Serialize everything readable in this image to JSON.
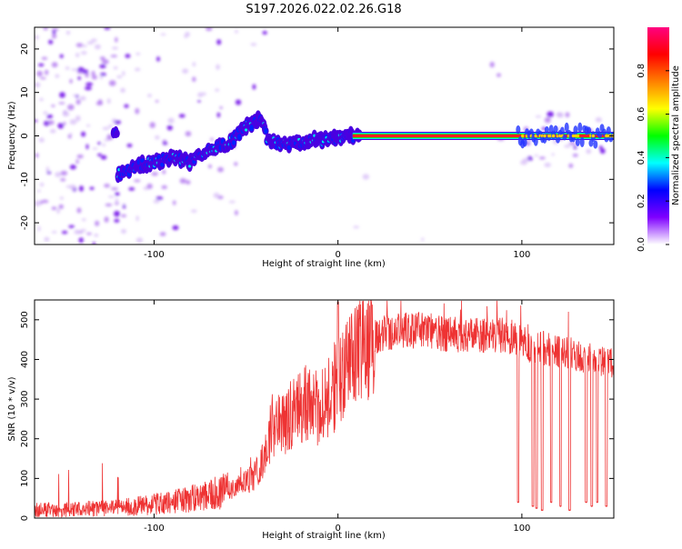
{
  "chart_data": [
    {
      "type": "heatmap",
      "title": "S197.2026.022.02.26.G18",
      "xlabel": "Height of straight line (km)",
      "ylabel": "Frequency (Hz)",
      "xlim": [
        -165,
        150
      ],
      "ylim": [
        -25,
        25
      ],
      "xticks": [
        -100,
        0,
        100
      ],
      "yticks": [
        -20,
        -10,
        0,
        10,
        20
      ],
      "colorbar": {
        "label": "Normalized spectral amplitude",
        "range": [
          0,
          1
        ],
        "ticks": [
          0.0,
          0.2,
          0.4,
          0.6,
          0.8
        ],
        "colors": [
          "#ffffff",
          "#7f00ff",
          "#0000ff",
          "#00ffff",
          "#00ff00",
          "#ffff00",
          "#ff8000",
          "#ff0000",
          "#ff0080"
        ]
      },
      "ridge": {
        "x": [
          -120,
          -110,
          -100,
          -90,
          -80,
          -70,
          -60,
          -50,
          -42,
          -38,
          -32,
          -25,
          -15,
          -5,
          5,
          15,
          150
        ],
        "y": [
          -9,
          -7,
          -6,
          -5,
          -6,
          -3,
          -2,
          2,
          4,
          -1,
          -2,
          -1.5,
          -1,
          -1,
          0,
          0,
          0
        ]
      }
    },
    {
      "type": "line",
      "title": "",
      "xlabel": "Height of straight line (km)",
      "ylabel": "SNR (10 * v/v)",
      "xlim": [
        -165,
        150
      ],
      "ylim": [
        0,
        550
      ],
      "xticks": [
        -100,
        0,
        100
      ],
      "yticks": [
        0,
        100,
        200,
        300,
        400,
        500
      ],
      "color": "#ee3333",
      "series": [
        {
          "name": "SNR",
          "x": [
            -165,
            -150,
            -140,
            -130,
            -120,
            -110,
            -100,
            -90,
            -80,
            -70,
            -60,
            -50,
            -45,
            -40,
            -38,
            -35,
            -30,
            -25,
            -20,
            -15,
            -10,
            -5,
            0,
            5,
            10,
            15,
            20,
            30,
            40,
            50,
            60,
            70,
            80,
            90,
            95,
            100,
            110,
            120,
            130,
            140,
            150
          ],
          "y": [
            20,
            20,
            22,
            25,
            25,
            30,
            35,
            40,
            50,
            60,
            70,
            90,
            110,
            150,
            200,
            230,
            240,
            260,
            280,
            300,
            270,
            300,
            350,
            380,
            410,
            440,
            460,
            470,
            475,
            470,
            465,
            460,
            460,
            460,
            455,
            440,
            430,
            420,
            410,
            400,
            390
          ]
        }
      ],
      "dropouts": [
        {
          "x": 98,
          "y": 40
        },
        {
          "x": 106,
          "y": 30
        },
        {
          "x": 108,
          "y": 25
        },
        {
          "x": 111,
          "y": 20
        },
        {
          "x": 116,
          "y": 40
        },
        {
          "x": 121,
          "y": 30
        },
        {
          "x": 126,
          "y": 20
        },
        {
          "x": 135,
          "y": 40
        },
        {
          "x": 138,
          "y": 30
        },
        {
          "x": 141,
          "y": 40
        },
        {
          "x": 146,
          "y": 30
        }
      ]
    }
  ]
}
